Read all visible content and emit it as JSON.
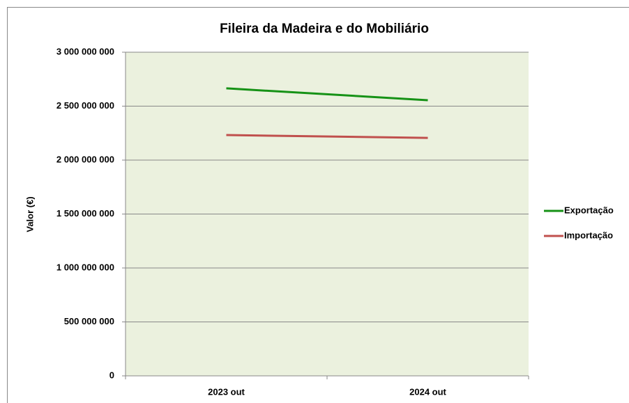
{
  "chart_data": {
    "type": "line",
    "title": "Fileira da Madeira e do Mobiliário",
    "y_label": "Valor (€)",
    "categories": [
      "2023 out",
      "2024 out"
    ],
    "series": [
      {
        "name": "Exportação",
        "color": "#169216",
        "values": [
          2665000000,
          2555000000
        ]
      },
      {
        "name": "Importação",
        "color": "#c0504d",
        "values": [
          2232000000,
          2206000000
        ]
      }
    ],
    "ylim": [
      0,
      3000000000
    ],
    "yticks": [
      0,
      {
        "value": 500000000,
        "label": "500 000 000"
      },
      {
        "value": 1000000000,
        "label": "1 000 000 000"
      },
      {
        "value": 1500000000,
        "label": "1 500 000 000"
      },
      {
        "value": 2000000000,
        "label": "2 000 000 000"
      },
      {
        "value": 2500000000,
        "label": "2 500 000 000"
      },
      {
        "value": 3000000000,
        "label": "3 000 000 000"
      }
    ],
    "grid": true,
    "legend": "right",
    "plot_background": "#ebf1de"
  }
}
